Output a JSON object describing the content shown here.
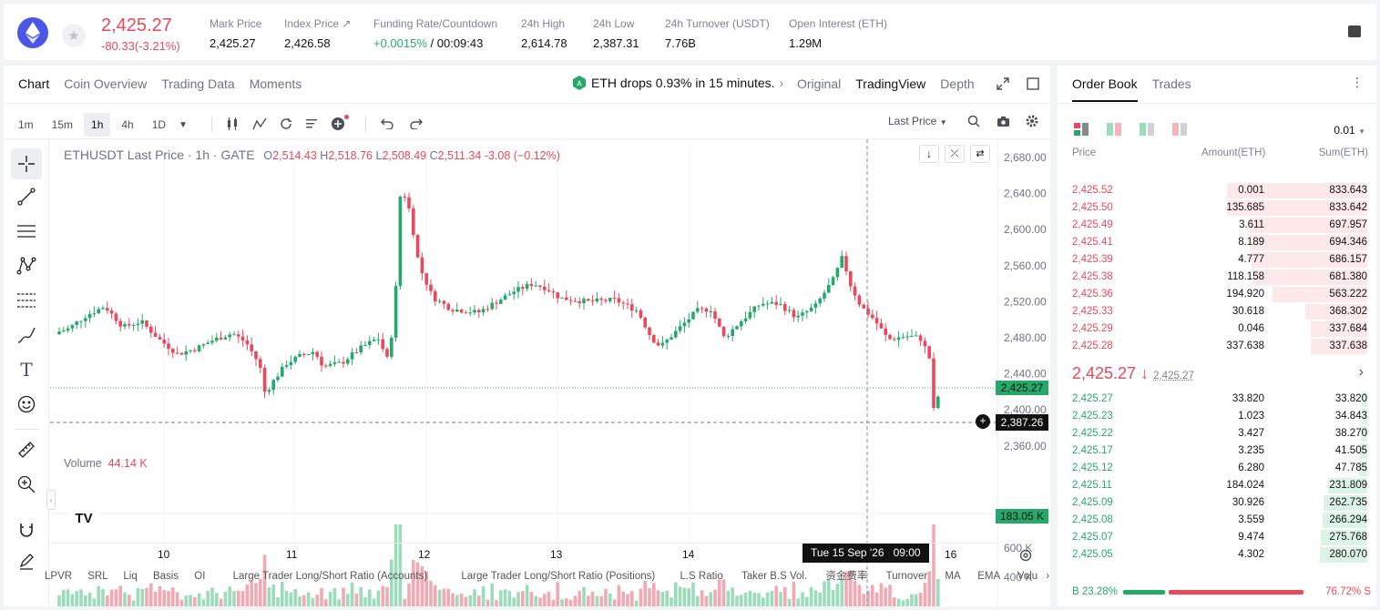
{
  "ticker": {
    "price": "2,425.27",
    "change": "-80.33(-3.21%)",
    "stats": [
      {
        "label": "Mark Price",
        "value": "2,425.27"
      },
      {
        "label": "Index Price ↗",
        "value": "2,426.58"
      },
      {
        "label": "Funding Rate/Countdown",
        "value_green": "+0.0015%",
        "value": " / 00:09:43"
      },
      {
        "label": "24h High",
        "value": "2,614.78"
      },
      {
        "label": "24h Low",
        "value": "2,387.31"
      },
      {
        "label": "24h Turnover (USDT)",
        "value": "7.76B"
      },
      {
        "label": "Open Interest (ETH)",
        "value": "1.29M"
      }
    ]
  },
  "chart_tabs": [
    "Chart",
    "Coin Overview",
    "Trading Data",
    "Moments"
  ],
  "news": "ETH drops 0.93% in 15 minutes.",
  "view_tabs": [
    "Original",
    "TradingView",
    "Depth"
  ],
  "timeframes": [
    "1m",
    "15m",
    "1h",
    "4h",
    "1D"
  ],
  "price_mode": "Last Price",
  "legend": {
    "symbol": "ETHUSDT Last Price · 1h · GATE",
    "o": "2,514.43",
    "h": "2,518.76",
    "l": "2,508.49",
    "c": "2,511.34",
    "chg": "-3.08 (−0.12%)"
  },
  "volume_label": "Volume",
  "volume_value": "44.14 K",
  "price_axis": [
    "2,680.00",
    "2,640.00",
    "2,600.00",
    "2,560.00",
    "2,520.00",
    "2,480.00",
    "2,440.00",
    "2,400.00",
    "2,360.00"
  ],
  "volume_axis": [
    "600 K",
    "400 K"
  ],
  "last_price_tag": "2,425.27",
  "crosshair_price": "2,387.26",
  "volume_tag": "183.05 K",
  "date_axis": [
    "10",
    "11",
    "12",
    "13",
    "14",
    "16"
  ],
  "crosshair_time": "Tue 15 Sep '26   09:00",
  "indicators": [
    "LPVR",
    "SRL",
    "Liq",
    "Basis",
    "OI",
    "Large Trader Long/Short Ratio (Accounts)",
    "Large Trader Long/Short Ratio (Positions)",
    "L.S Ratio",
    "Taker B.S Vol.",
    "资金费率",
    "Turnover",
    "MA",
    "EMA",
    "Volu"
  ],
  "orderbook": {
    "tabs": [
      "Order Book",
      "Trades"
    ],
    "precision": "0.01",
    "headers": [
      "Price",
      "Amount(ETH)",
      "Sum(ETH)"
    ],
    "asks": [
      [
        "2,425.52",
        "0.001",
        "833.643"
      ],
      [
        "2,425.50",
        "135.685",
        "833.642"
      ],
      [
        "2,425.49",
        "3.611",
        "697.957"
      ],
      [
        "2,425.41",
        "8.189",
        "694.346"
      ],
      [
        "2,425.39",
        "4.777",
        "686.157"
      ],
      [
        "2,425.38",
        "118.158",
        "681.380"
      ],
      [
        "2,425.36",
        "194.920",
        "563.222"
      ],
      [
        "2,425.33",
        "30.618",
        "368.302"
      ],
      [
        "2,425.29",
        "0.046",
        "337.684"
      ],
      [
        "2,425.28",
        "337.638",
        "337.638"
      ]
    ],
    "mid": "2,425.27 ↓",
    "mid_sub": "2,425.27",
    "bids": [
      [
        "2,425.27",
        "33.820",
        "33.820"
      ],
      [
        "2,425.23",
        "1.023",
        "34.843"
      ],
      [
        "2,425.22",
        "3.427",
        "38.270"
      ],
      [
        "2,425.17",
        "3.235",
        "41.505"
      ],
      [
        "2,425.12",
        "6.280",
        "47.785"
      ],
      [
        "2,425.11",
        "184.024",
        "231.809"
      ],
      [
        "2,425.09",
        "30.926",
        "262.735"
      ],
      [
        "2,425.08",
        "3.559",
        "266.294"
      ],
      [
        "2,425.07",
        "9.474",
        "275.768"
      ],
      [
        "2,425.05",
        "4.302",
        "280.070"
      ]
    ],
    "buy_ratio": "B 23.28%",
    "sell_ratio": "76.72% S",
    "buy_fraction": 0.2328
  }
}
